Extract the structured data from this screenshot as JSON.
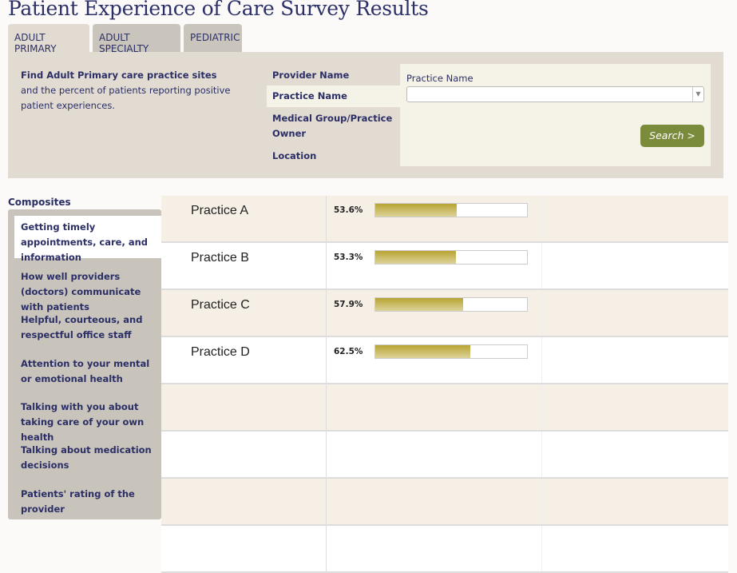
{
  "title": "Patient Experience of Care Survey Results",
  "tabs": [
    {
      "label": "ADULT PRIMARY",
      "active": true
    },
    {
      "label": "ADULT SPECIALTY"
    },
    {
      "label": "PEDIATRIC"
    }
  ],
  "search_panel": {
    "heading": "Find Adult Primary care practice sites",
    "description": "and the percent of patients reporting positive patient experiences.",
    "options": [
      "Provider Name",
      "Practice Name",
      "Medical Group/Practice Owner",
      "Location"
    ],
    "selected_option": "Practice Name",
    "field_label": "Practice Name",
    "field_value": "",
    "search_button": "Search >"
  },
  "composites": {
    "heading": "Composites",
    "items": [
      "Getting timely appointments, care, and information",
      "How well providers (doctors) communicate with patients",
      "Helpful, courteous, and respectful office staff",
      "Attention to your mental or emotional health",
      "Talking with you about taking care of your own health",
      "Talking about medication decisions",
      "Patients' rating of the provider"
    ],
    "active_index": 0
  },
  "results": [
    {
      "name": "Practice A",
      "percent_label": "53.6%",
      "percent": 53.6
    },
    {
      "name": "Practice B",
      "percent_label": "53.3%",
      "percent": 53.3
    },
    {
      "name": "Practice C",
      "percent_label": "57.9%",
      "percent": 57.9
    },
    {
      "name": "Practice D",
      "percent_label": "62.5%",
      "percent": 62.5
    }
  ],
  "colors": {
    "text": "#2b3068",
    "bar": "#b8a433",
    "button": "#7b8b3c",
    "panel": "#e2dbd2"
  }
}
